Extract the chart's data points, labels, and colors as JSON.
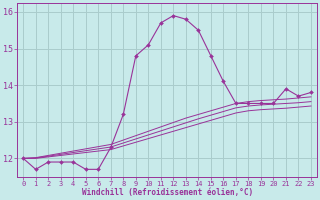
{
  "xlabel": "Windchill (Refroidissement éolien,°C)",
  "bg_color": "#c8eaea",
  "grid_color": "#aacccc",
  "line_color": "#993399",
  "x_values": [
    0,
    1,
    2,
    3,
    4,
    5,
    6,
    7,
    8,
    9,
    10,
    11,
    12,
    13,
    14,
    15,
    16,
    17,
    18,
    19,
    20,
    21,
    22,
    23
  ],
  "y_main": [
    12.0,
    11.7,
    11.9,
    11.9,
    11.9,
    11.7,
    11.7,
    12.3,
    13.2,
    14.8,
    15.1,
    15.7,
    15.9,
    15.8,
    15.5,
    14.8,
    14.1,
    13.5,
    13.5,
    13.5,
    13.5,
    13.9,
    13.7,
    13.8
  ],
  "y_band1": [
    12.0,
    12.02,
    12.08,
    12.14,
    12.2,
    12.26,
    12.32,
    12.38,
    12.5,
    12.62,
    12.74,
    12.86,
    12.98,
    13.1,
    13.2,
    13.3,
    13.4,
    13.5,
    13.55,
    13.58,
    13.6,
    13.62,
    13.65,
    13.68
  ],
  "y_band2": [
    12.0,
    12.01,
    12.06,
    12.11,
    12.16,
    12.21,
    12.26,
    12.31,
    12.42,
    12.53,
    12.64,
    12.75,
    12.86,
    12.97,
    13.08,
    13.18,
    13.28,
    13.38,
    13.43,
    13.46,
    13.48,
    13.5,
    13.52,
    13.55
  ],
  "y_band3": [
    12.0,
    12.0,
    12.04,
    12.08,
    12.12,
    12.16,
    12.2,
    12.24,
    12.34,
    12.44,
    12.54,
    12.64,
    12.74,
    12.84,
    12.94,
    13.04,
    13.14,
    13.24,
    13.3,
    13.33,
    13.35,
    13.37,
    13.4,
    13.43
  ],
  "ylim": [
    11.5,
    16.25
  ],
  "yticks": [
    12,
    13,
    14,
    15,
    16
  ],
  "xticks": [
    0,
    1,
    2,
    3,
    4,
    5,
    6,
    7,
    8,
    9,
    10,
    11,
    12,
    13,
    14,
    15,
    16,
    17,
    18,
    19,
    20,
    21,
    22,
    23
  ]
}
